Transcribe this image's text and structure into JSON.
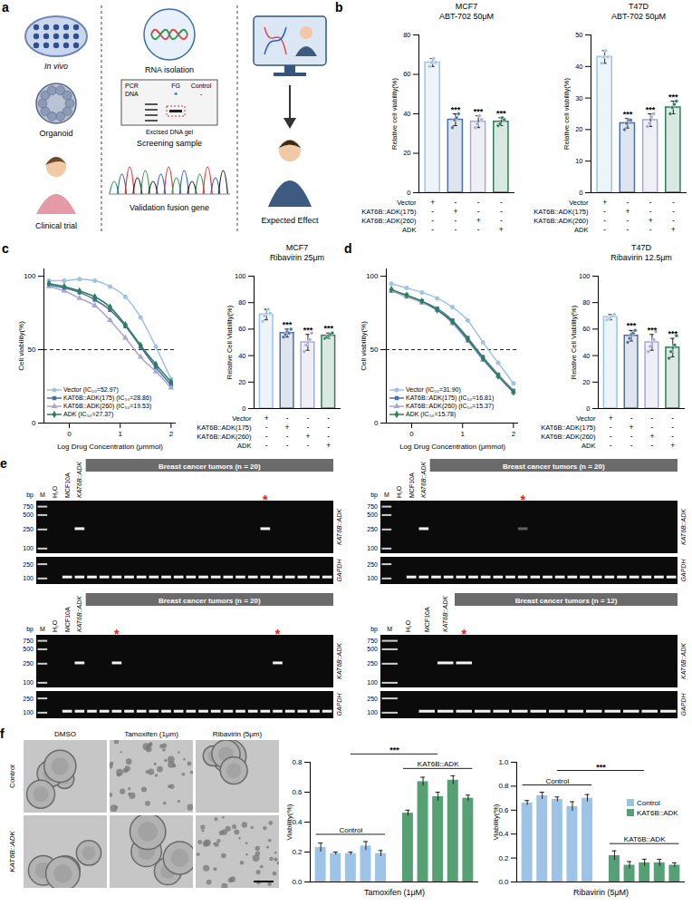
{
  "panel_labels": [
    "a",
    "b",
    "c",
    "d",
    "e",
    "f"
  ],
  "diagram_a": {
    "column1": [
      "In vivo",
      "Organoid",
      "Clinical trial"
    ],
    "column2": [
      "RNA isolation",
      "Screening sample",
      "Validation fusion gene"
    ],
    "gel": {
      "header": [
        "PCR",
        "FG",
        "Control"
      ],
      "row": "DNA",
      "signs": [
        "+",
        "-"
      ],
      "note": "Excised DNA gel"
    },
    "column3": [
      "Expected Effect"
    ]
  },
  "chart_data": [
    {
      "type": "bar",
      "title": "MCF7",
      "subtitle": "ABT-702 50μM",
      "y_label": "Relative cell viability(%)",
      "categories": [
        "Vector",
        "KAT6B::ADK(175)",
        "KAT6B::ADK(260)",
        "ADK"
      ],
      "values": [
        66,
        37,
        36,
        36
      ],
      "errors": [
        2,
        3,
        3,
        2
      ],
      "points": [
        [
          64,
          66,
          68,
          66
        ],
        [
          33,
          37,
          38,
          40
        ],
        [
          33,
          35,
          39,
          37
        ],
        [
          34,
          35,
          38,
          37
        ]
      ],
      "colors": [
        "#9dc3e6",
        "#4a6fa5",
        "#a4a9d6",
        "#2e7d5b"
      ],
      "significance": [
        null,
        "***",
        "***",
        "***"
      ],
      "design": [
        [
          "+",
          "-",
          "-",
          "-"
        ],
        [
          "-",
          "+",
          "-",
          "-"
        ],
        [
          "-",
          "-",
          "+",
          "-"
        ],
        [
          "-",
          "-",
          "-",
          "+"
        ]
      ],
      "ylim": [
        0,
        80
      ],
      "yticks": [
        0,
        20,
        40,
        60,
        80
      ],
      "tick_labels": "y"
    },
    {
      "type": "bar",
      "title": "T47D",
      "subtitle": "ABT-702 50μM",
      "y_label": "Relative cell viability(%)",
      "categories": [
        "Vector",
        "KAT6B::ADK(175)",
        "KAT6B::ADK(260)",
        "ADK"
      ],
      "values": [
        43,
        22,
        23,
        27
      ],
      "errors": [
        2,
        1.5,
        2,
        2
      ],
      "points": [
        [
          41,
          43,
          45,
          43
        ],
        [
          20,
          22,
          23,
          23
        ],
        [
          21,
          22,
          24,
          25
        ],
        [
          25,
          27,
          28,
          29
        ]
      ],
      "colors": [
        "#9dc3e6",
        "#4a6fa5",
        "#a4a9d6",
        "#2e7d5b"
      ],
      "significance": [
        null,
        "***",
        "***",
        "***"
      ],
      "design": [
        [
          "+",
          "-",
          "-",
          "-"
        ],
        [
          "-",
          "+",
          "-",
          "-"
        ],
        [
          "-",
          "-",
          "+",
          "-"
        ],
        [
          "-",
          "-",
          "-",
          "+"
        ]
      ],
      "ylim": [
        0,
        50
      ],
      "yticks": [
        0,
        10,
        20,
        30,
        40,
        50
      ],
      "tick_labels": "y"
    },
    {
      "type": "line",
      "x_label": "Log Drug Concentration (μmmol)",
      "y_label": "Cell viability(%)",
      "x": [
        -0.4,
        -0.1,
        0.2,
        0.5,
        0.8,
        1.1,
        1.4,
        1.7,
        2.0
      ],
      "series": [
        {
          "name": "Vector (IC₅₀=52.97)",
          "color": "#9dc3e6",
          "marker": "circle",
          "values": [
            97,
            97,
            98,
            97,
            93,
            86,
            72,
            52,
            30
          ]
        },
        {
          "name": "KAT6B::ADK(175) (IC₅₀=28.86)",
          "color": "#4a6fa5",
          "marker": "square",
          "values": [
            94,
            92,
            89,
            84,
            77,
            66,
            52,
            38,
            26
          ]
        },
        {
          "name": "KAT6B::ADK(260) (IC₅₀=19.53)",
          "color": "#a4a9d6",
          "marker": "triangle",
          "values": [
            93,
            90,
            85,
            80,
            70,
            58,
            45,
            35,
            24
          ]
        },
        {
          "name": "ADK (IC₅₀=27.37)",
          "color": "#2e7d5b",
          "marker": "diamond",
          "values": [
            95,
            93,
            90,
            86,
            79,
            67,
            53,
            40,
            28
          ]
        }
      ],
      "xlim": [
        -0.5,
        2.1
      ],
      "xticks": [
        0,
        1,
        2
      ],
      "ylim": [
        0,
        105
      ],
      "yticks": [
        0,
        50,
        100
      ],
      "reference_y": 50,
      "legend": "bottom-left"
    },
    {
      "type": "bar",
      "title": "MCF7",
      "subtitle": "Ribavirin 25μm",
      "y_label": "Relative Cell Viability(%)",
      "categories": [
        "Vector",
        "KAT6B::ADK(175)",
        "KAT6B::ADK(260)",
        "ADK"
      ],
      "values": [
        71,
        57,
        50,
        55
      ],
      "errors": [
        4,
        3,
        6,
        2
      ],
      "points": [
        [
          66,
          70,
          72,
          75,
          72
        ],
        [
          54,
          56,
          58,
          57,
          60
        ],
        [
          43,
          48,
          50,
          52,
          57
        ],
        [
          53,
          54,
          55,
          56,
          57
        ]
      ],
      "colors": [
        "#9dc3e6",
        "#4a6fa5",
        "#a4a9d6",
        "#2e7d5b"
      ],
      "significance": [
        null,
        "***",
        "***",
        "***"
      ],
      "design": [
        [
          "+",
          "-",
          "-",
          "-"
        ],
        [
          "-",
          "+",
          "-",
          "-"
        ],
        [
          "-",
          "-",
          "+",
          "-"
        ],
        [
          "-",
          "-",
          "-",
          "+"
        ]
      ],
      "ylim": [
        0,
        100
      ],
      "yticks": [
        0,
        20,
        40,
        60,
        80,
        100
      ],
      "tick_labels": "y"
    },
    {
      "type": "line",
      "x_label": "Log Drug Concentration (μmmol)",
      "y_label": "Cell viability(%)",
      "x": [
        -0.4,
        -0.1,
        0.2,
        0.5,
        0.8,
        1.1,
        1.4,
        1.7,
        2.0
      ],
      "series": [
        {
          "name": "Vector (IC₅₀=31.90)",
          "color": "#9dc3e6",
          "marker": "circle",
          "values": [
            95,
            92,
            89,
            85,
            79,
            70,
            55,
            41,
            27
          ]
        },
        {
          "name": "KAT6B::ADK(175) (IC₅₀=16.81)",
          "color": "#4a6fa5",
          "marker": "square",
          "values": [
            90,
            87,
            83,
            78,
            70,
            58,
            45,
            33,
            22
          ]
        },
        {
          "name": "KAT6B::ADK(260) (IC₅₀=15.37)",
          "color": "#a4a9d6",
          "marker": "triangle",
          "values": [
            90,
            86,
            82,
            77,
            68,
            56,
            43,
            32,
            21
          ]
        },
        {
          "name": "ADK (IC₅₀=15.78)",
          "color": "#2e7d5b",
          "marker": "diamond",
          "values": [
            91,
            87,
            83,
            77,
            69,
            57,
            44,
            32,
            21
          ]
        }
      ],
      "xlim": [
        -0.5,
        2.1
      ],
      "xticks": [
        0,
        1,
        2
      ],
      "ylim": [
        0,
        105
      ],
      "yticks": [
        0,
        50,
        100
      ],
      "reference_y": 50,
      "legend": "bottom-left"
    },
    {
      "type": "bar",
      "title": "T47D",
      "subtitle": "Ribavirin 12.5μm",
      "y_label": "Relative Cell Viability(%)",
      "categories": [
        "Vector",
        "KAT6B::ADK(175)",
        "KAT6B::ADK(260)",
        "ADK"
      ],
      "values": [
        69,
        55,
        50,
        46
      ],
      "errors": [
        2,
        4,
        6,
        7
      ],
      "points": [
        [
          67,
          68,
          69,
          70,
          71
        ],
        [
          50,
          53,
          56,
          57,
          59
        ],
        [
          43,
          47,
          50,
          52,
          58
        ],
        [
          38,
          43,
          46,
          48,
          55
        ]
      ],
      "colors": [
        "#9dc3e6",
        "#4a6fa5",
        "#a4a9d6",
        "#2e7d5b"
      ],
      "significance": [
        null,
        "***",
        "***",
        "***"
      ],
      "design": [
        [
          "+",
          "-",
          "-",
          "-"
        ],
        [
          "-",
          "+",
          "-",
          "-"
        ],
        [
          "-",
          "-",
          "+",
          "-"
        ],
        [
          "-",
          "-",
          "-",
          "+"
        ]
      ],
      "ylim": [
        0,
        100
      ],
      "yticks": [
        0,
        20,
        40,
        60,
        80,
        100
      ],
      "tick_labels": "y"
    },
    {
      "type": "bar",
      "x_label": "Tamoxifen (1μM)",
      "y_label": "Viability(%)",
      "series": [
        {
          "name": "Control",
          "color": "#9dc3e6",
          "values": [
            0.23,
            0.19,
            0.19,
            0.24,
            0.19
          ],
          "errors": [
            0.03,
            0.01,
            0.01,
            0.03,
            0.02
          ]
        },
        {
          "name": "KAT6B::ADK",
          "color": "#55a175",
          "values": [
            0.46,
            0.67,
            0.57,
            0.68,
            0.56
          ],
          "errors": [
            0.02,
            0.03,
            0.03,
            0.03,
            0.02
          ]
        }
      ],
      "significance": "***",
      "ylim": [
        0,
        0.8
      ],
      "yticks": [
        {
          "value": 0,
          "label": "0.0"
        },
        0.2,
        0.4,
        0.6,
        0.8
      ],
      "tick_labels": "y"
    },
    {
      "type": "bar",
      "x_label": "Ribavirin (5μM)",
      "y_label": "Viability(%)",
      "series": [
        {
          "name": "Control",
          "color": "#9dc3e6",
          "values": [
            0.66,
            0.72,
            0.69,
            0.63,
            0.7
          ],
          "errors": [
            0.02,
            0.03,
            0.02,
            0.04,
            0.03
          ]
        },
        {
          "name": "KAT6B::ADK",
          "color": "#55a175",
          "values": [
            0.22,
            0.14,
            0.16,
            0.16,
            0.14
          ],
          "errors": [
            0.04,
            0.03,
            0.03,
            0.03,
            0.02
          ]
        }
      ],
      "significance": "***",
      "ylim": [
        0,
        1
      ],
      "yticks": [
        {
          "value": 0,
          "label": "0.0"
        },
        0.2,
        0.4,
        0.6,
        0.8,
        {
          "value": 1,
          "label": "1.0"
        }
      ],
      "tick_labels": "y",
      "legend": "right"
    }
  ],
  "gels_e": {
    "unit": "bp",
    "ladder_top": [
      750,
      500,
      250,
      100
    ],
    "ladder_bottom": [
      250,
      100
    ],
    "lane_labels": [
      "M",
      "H₂O",
      "MCF10A",
      "KAT6B::ADK"
    ],
    "row_labels": [
      "KAT6B::ADK",
      "GAPDH"
    ],
    "band_bp": [
      260,
      110
    ],
    "positive_mark": "*",
    "panels": [
      {
        "title": "Breast cancer tumors (n = 20)",
        "tumors": 20,
        "positive": [
          15
        ],
        "faint": false
      },
      {
        "title": "Breast cancer tumors (n = 20)",
        "tumors": 20,
        "positive": [
          8
        ],
        "faint": true
      },
      {
        "title": "Breast cancer tumors (n = 20)",
        "tumors": 20,
        "positive": [
          3,
          16
        ],
        "faint": false
      },
      {
        "title": "Breast cancer tumors (n = 12)",
        "tumors": 12,
        "positive": [
          1
        ],
        "faint": false
      }
    ]
  },
  "images_f": {
    "columns": [
      "DMSO",
      "Tamoxifen (1μm)",
      "Ribavirin (5μm)"
    ],
    "rows": [
      "Control",
      "KAT6B::ADK"
    ]
  }
}
